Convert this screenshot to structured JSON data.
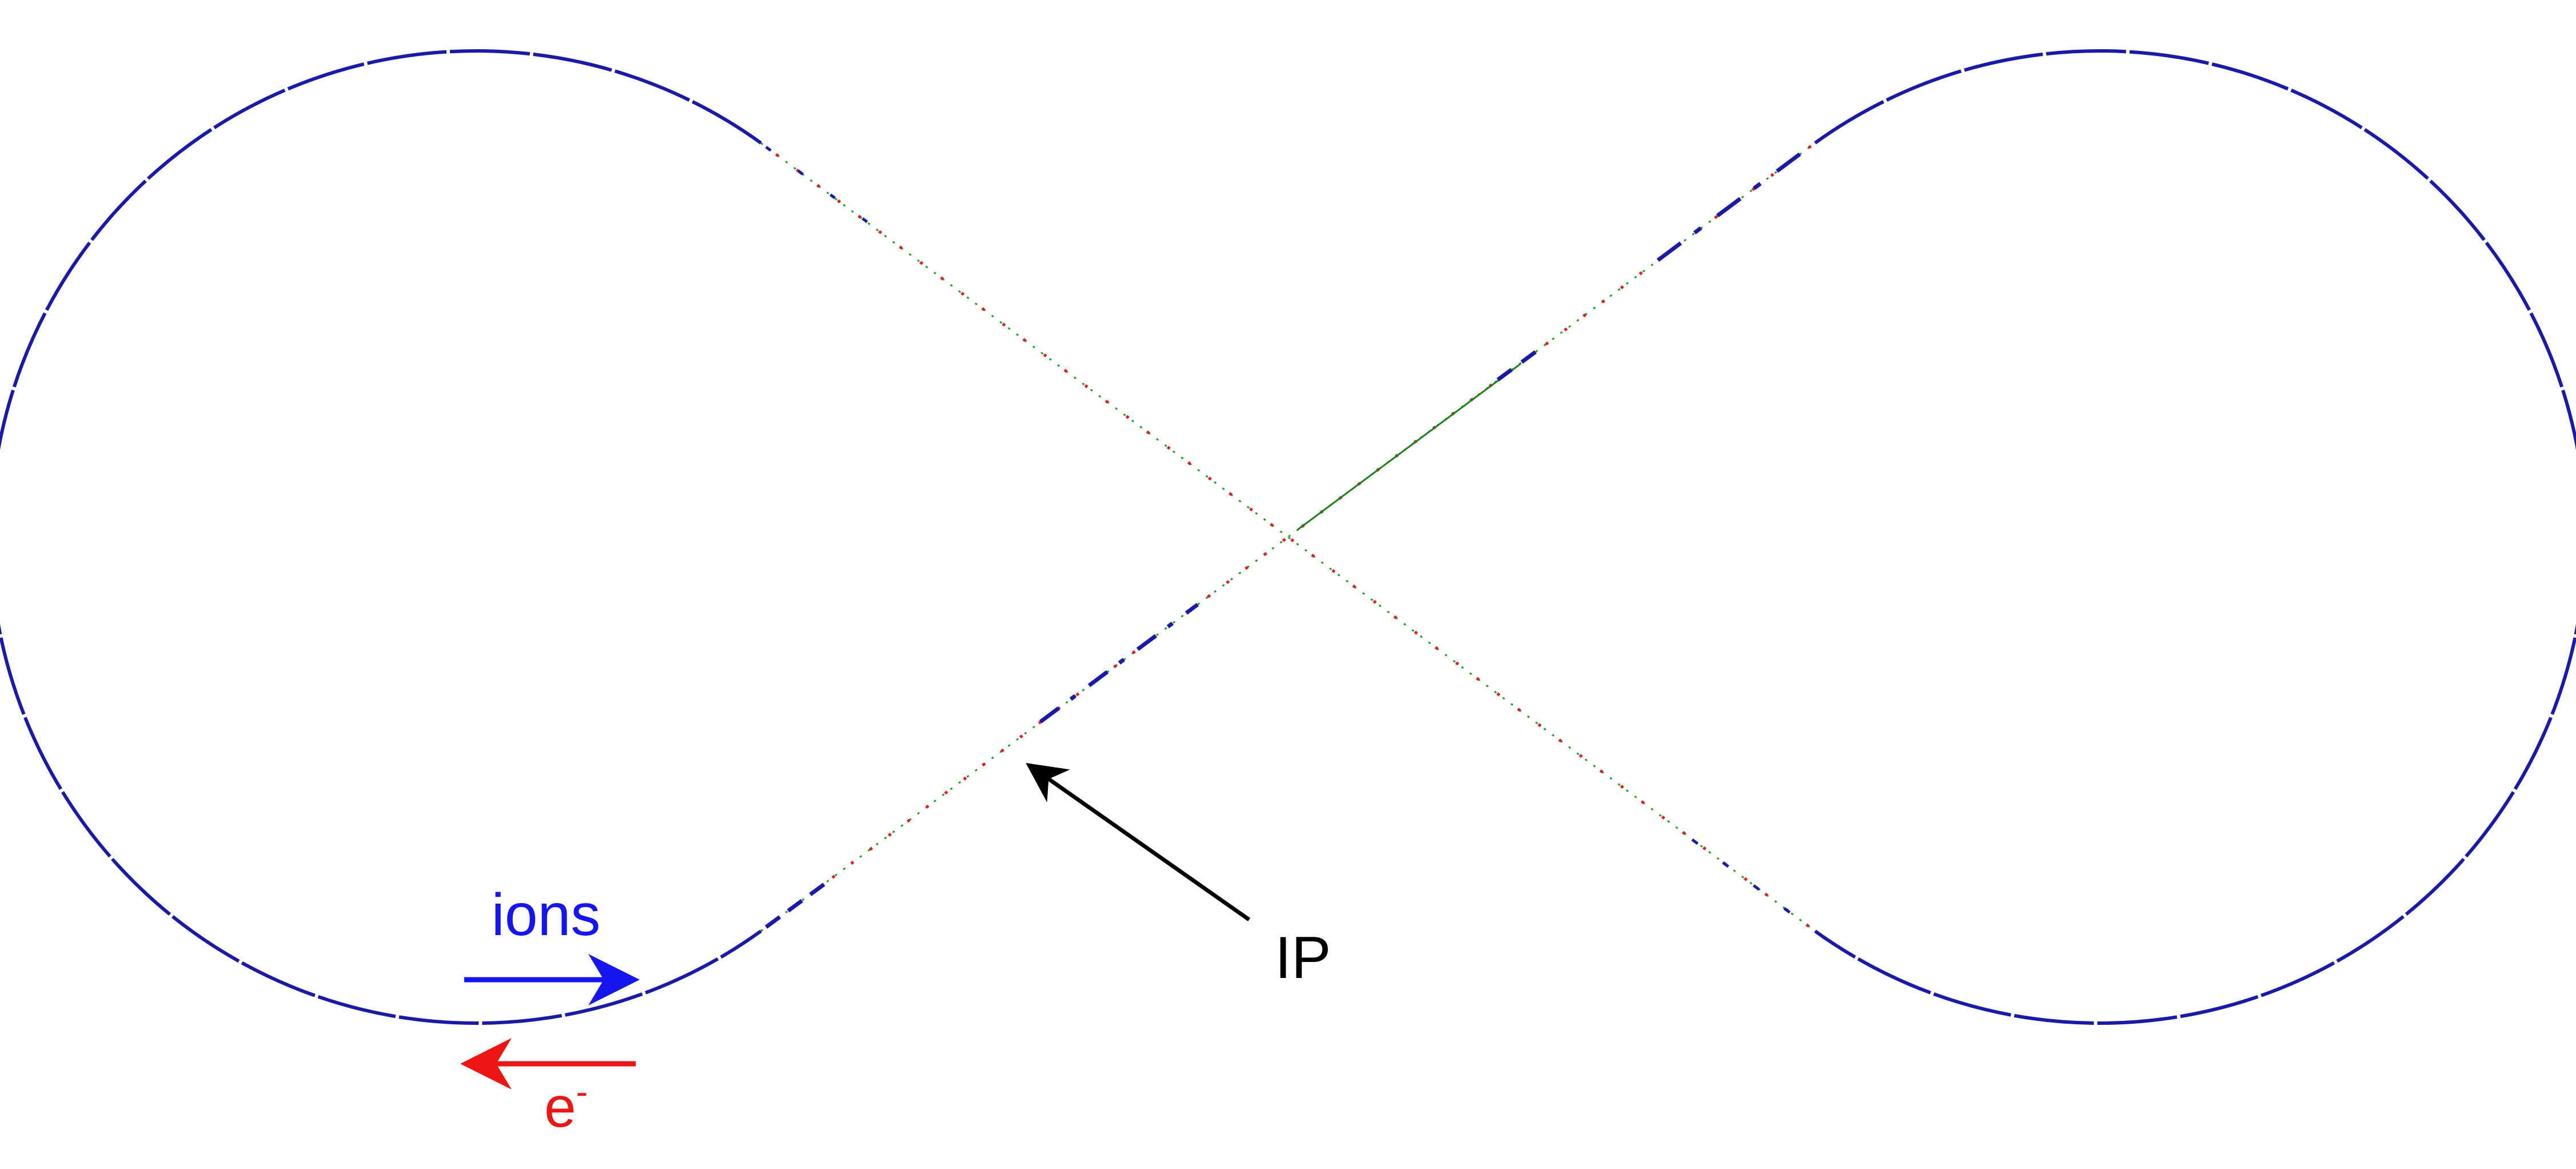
{
  "diagram": {
    "labels": {
      "ions": "ions",
      "electron_base": "e",
      "electron_sup": "-",
      "ip": "IP"
    },
    "colors": {
      "background": "#ffffff",
      "ion_ring": "#1a1aa6",
      "ions_label": "#1515ee",
      "electrons": "#ee1515",
      "magnet_green": "#1fa01f",
      "magnet_red": "#e02020",
      "ip_arrow": "#000000"
    }
  }
}
